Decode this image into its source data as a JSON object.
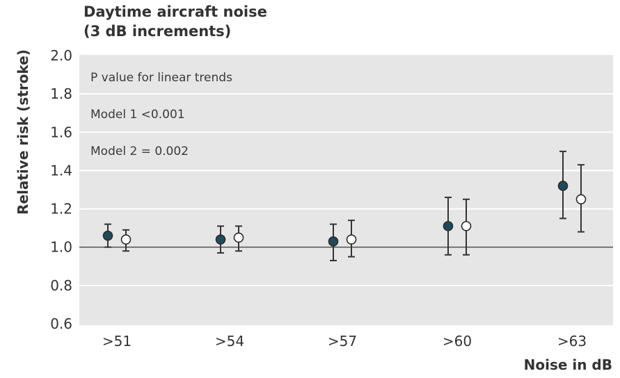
{
  "chart_data": {
    "type": "scatter",
    "title": "Daytime aircraft noise",
    "subtitle": "(3 dB increments)",
    "xlabel": "Noise in dB",
    "ylabel": "Relative risk (stroke)",
    "categories": [
      ">51",
      ">54",
      ">57",
      ">60",
      ">63"
    ],
    "ylim": [
      0.6,
      2.0
    ],
    "yticks": [
      "0.6",
      "0.8",
      "1.0",
      "1.2",
      "1.4",
      "1.6",
      "1.8",
      "2.0"
    ],
    "reference_line": 1.0,
    "grid": true,
    "annotations": [
      "P value for linear trends",
      "Model 1 <0.001",
      "Model 2 = 0.002"
    ],
    "series": [
      {
        "marker": "filled",
        "color": "#1f4a5c",
        "values": [
          1.06,
          1.04,
          1.03,
          1.11,
          1.32
        ],
        "lower": [
          1.0,
          0.97,
          0.93,
          0.96,
          1.15
        ],
        "upper": [
          1.12,
          1.11,
          1.12,
          1.26,
          1.5
        ]
      },
      {
        "marker": "open",
        "color": "#ffffff",
        "values": [
          1.04,
          1.05,
          1.04,
          1.11,
          1.25
        ],
        "lower": [
          0.98,
          0.98,
          0.95,
          0.96,
          1.08
        ],
        "upper": [
          1.09,
          1.11,
          1.14,
          1.25,
          1.43
        ]
      }
    ]
  }
}
